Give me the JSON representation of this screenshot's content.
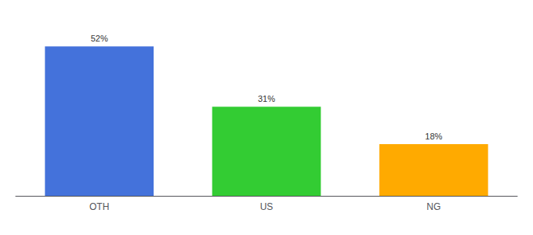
{
  "chart_data": {
    "type": "bar",
    "categories": [
      "OTH",
      "US",
      "NG"
    ],
    "values": [
      52,
      31,
      18
    ],
    "value_labels": [
      "52%",
      "31%",
      "18%"
    ],
    "colors": [
      "#4472db",
      "#33cc33",
      "#ffaa00"
    ],
    "ylim": [
      0,
      60
    ],
    "grid": false,
    "tick_labels": "x"
  }
}
